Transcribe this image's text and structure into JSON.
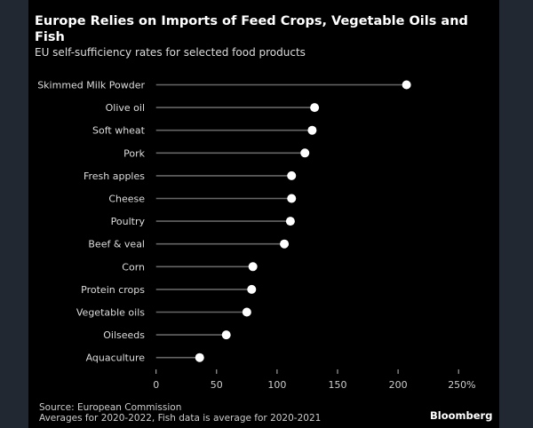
{
  "chart_data": {
    "type": "lollipop",
    "title": "Europe Relies on Imports of Feed Crops, Vegetable Oils and Fish",
    "subtitle": "EU self-sufficiency rates for selected food products",
    "xlabel": "",
    "ylabel": "",
    "unit": "%",
    "xlim": [
      0,
      250
    ],
    "xticks": [
      0,
      50,
      100,
      150,
      200,
      250
    ],
    "xtick_labels": [
      "0",
      "50",
      "100",
      "150",
      "200",
      "250%"
    ],
    "grid": false,
    "categories": [
      "Skimmed Milk Powder",
      "Olive oil",
      "Soft wheat",
      "Pork",
      "Fresh apples",
      "Cheese",
      "Poultry",
      "Beef & veal",
      "Corn",
      "Protein crops",
      "Vegetable oils",
      "Oilseeds",
      "Aquaculture"
    ],
    "values": [
      207,
      131,
      129,
      123,
      112,
      112,
      111,
      106,
      80,
      79,
      75,
      58,
      36
    ],
    "colors": {
      "background": "#000000",
      "stem": "#666666",
      "dot": "#ffffff",
      "text": "#dddddd"
    }
  },
  "footer": {
    "source": "Source: European Commission",
    "note": "Averages for 2020-2022, Fish data is average for 2020-2021",
    "brand": "Bloomberg"
  }
}
